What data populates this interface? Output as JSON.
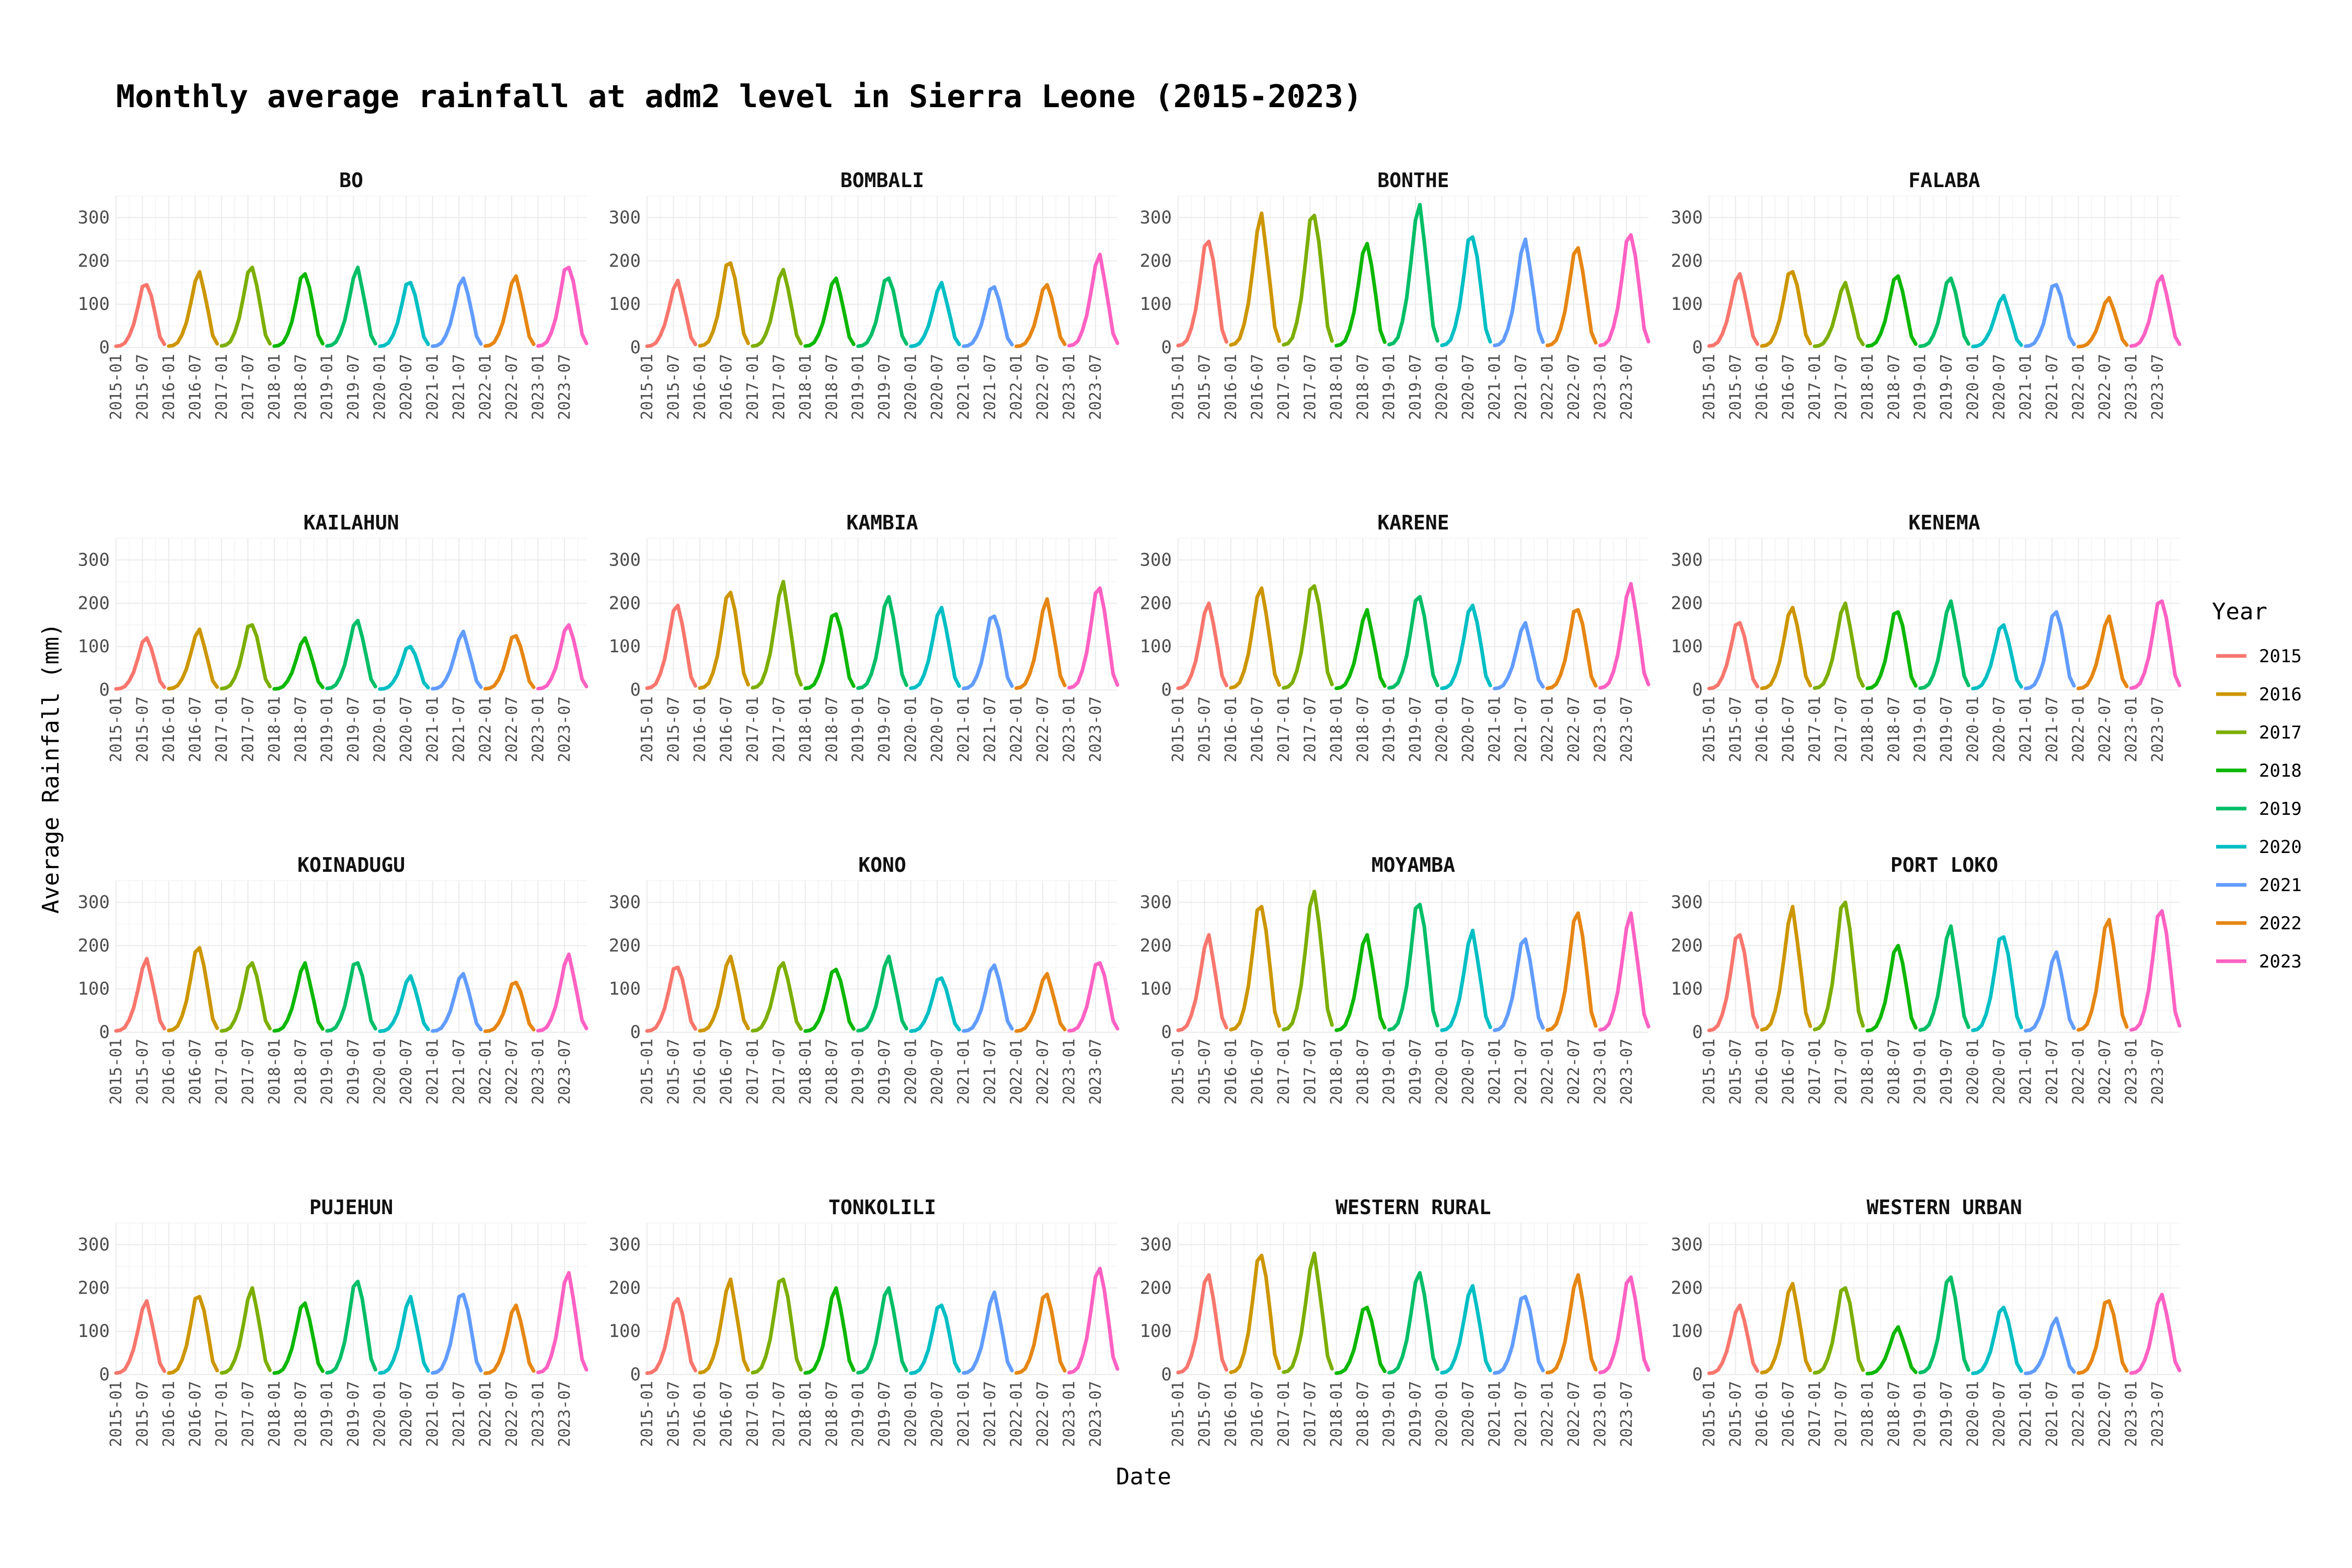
{
  "chart_data": {
    "type": "line",
    "title": "Monthly average rainfall at adm2 level in Sierra Leone (2015-2023)",
    "xlabel": "Date",
    "ylabel": "Average Rainfall (mm)",
    "ylim": [
      0,
      350
    ],
    "y_ticks": [
      "0",
      "100",
      "200",
      "300"
    ],
    "x_ticks": [
      "2015-01",
      "2015-07",
      "2016-01",
      "2016-07",
      "2017-01",
      "2017-07",
      "2018-01",
      "2018-07",
      "2019-01",
      "2019-07",
      "2020-01",
      "2020-07",
      "2021-01",
      "2021-07",
      "2022-01",
      "2022-07",
      "2023-01",
      "2023-07"
    ],
    "x_range": [
      "2015-01",
      "2023-12"
    ],
    "grid": true,
    "facet_layout": "4x4",
    "legend": {
      "title": "Year",
      "position": "right"
    },
    "series": [
      {
        "name": "2015",
        "color": "#F8766D"
      },
      {
        "name": "2016",
        "color": "#CD9600"
      },
      {
        "name": "2017",
        "color": "#7CAE00"
      },
      {
        "name": "2018",
        "color": "#0CB702"
      },
      {
        "name": "2019",
        "color": "#00BE67"
      },
      {
        "name": "2020",
        "color": "#00BFC4"
      },
      {
        "name": "2021",
        "color": "#619CFF"
      },
      {
        "name": "2022",
        "color": "#E68613"
      },
      {
        "name": "2023",
        "color": "#FF61C3"
      }
    ],
    "panels": [
      {
        "name": "BO",
        "peaks": [
          145,
          175,
          185,
          170,
          185,
          150,
          160,
          165,
          185
        ]
      },
      {
        "name": "BOMBALI",
        "peaks": [
          155,
          195,
          180,
          160,
          160,
          150,
          140,
          145,
          215
        ]
      },
      {
        "name": "BONTHE",
        "peaks": [
          245,
          310,
          305,
          240,
          330,
          255,
          250,
          230,
          260
        ]
      },
      {
        "name": "FALABA",
        "peaks": [
          170,
          175,
          150,
          165,
          160,
          120,
          145,
          115,
          165
        ]
      },
      {
        "name": "KAILAHUN",
        "peaks": [
          120,
          140,
          150,
          120,
          160,
          100,
          135,
          125,
          150
        ]
      },
      {
        "name": "KAMBIA",
        "peaks": [
          195,
          225,
          250,
          175,
          215,
          190,
          170,
          210,
          235
        ]
      },
      {
        "name": "KARENE",
        "peaks": [
          200,
          235,
          240,
          185,
          215,
          195,
          155,
          185,
          245
        ]
      },
      {
        "name": "KENEMA",
        "peaks": [
          155,
          190,
          200,
          180,
          205,
          150,
          180,
          170,
          205
        ]
      },
      {
        "name": "KOINADUGU",
        "peaks": [
          170,
          195,
          160,
          160,
          160,
          130,
          135,
          115,
          180
        ]
      },
      {
        "name": "KONO",
        "peaks": [
          150,
          175,
          160,
          145,
          175,
          125,
          155,
          135,
          160
        ]
      },
      {
        "name": "MOYAMBA",
        "peaks": [
          225,
          290,
          325,
          225,
          295,
          235,
          215,
          275,
          275
        ]
      },
      {
        "name": "PORT LOKO",
        "peaks": [
          225,
          290,
          300,
          200,
          245,
          220,
          185,
          260,
          280
        ]
      },
      {
        "name": "PUJEHUN",
        "peaks": [
          170,
          180,
          200,
          165,
          215,
          180,
          185,
          160,
          235
        ]
      },
      {
        "name": "TONKOLILI",
        "peaks": [
          175,
          220,
          220,
          200,
          200,
          160,
          190,
          185,
          245
        ]
      },
      {
        "name": "WESTERN RURAL",
        "peaks": [
          230,
          275,
          280,
          155,
          235,
          205,
          180,
          230,
          225
        ]
      },
      {
        "name": "WESTERN URBAN",
        "peaks": [
          160,
          210,
          200,
          110,
          225,
          155,
          130,
          170,
          185
        ]
      }
    ]
  }
}
